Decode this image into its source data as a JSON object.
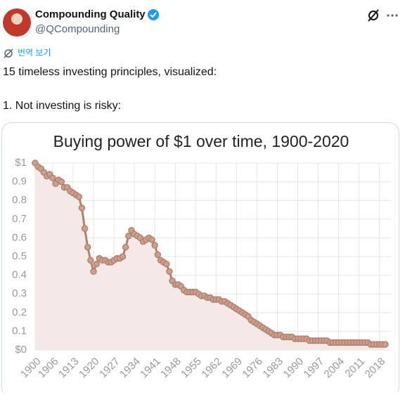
{
  "tweet": {
    "name": "Compounding Quality",
    "handle": "@QCompounding",
    "translate": "번역 보기",
    "lines": [
      "15 timeless investing principles, visualized:",
      "1.  Not investing is risky:"
    ]
  },
  "chart_data": {
    "type": "line",
    "title": "Buying power of $1 over time, 1900-2020",
    "x": [
      1900,
      1901,
      1902,
      1903,
      1904,
      1905,
      1906,
      1907,
      1908,
      1909,
      1910,
      1911,
      1912,
      1913,
      1914,
      1915,
      1916,
      1917,
      1918,
      1919,
      1920,
      1921,
      1922,
      1923,
      1924,
      1925,
      1926,
      1927,
      1928,
      1929,
      1930,
      1931,
      1932,
      1933,
      1934,
      1935,
      1936,
      1937,
      1938,
      1939,
      1940,
      1941,
      1942,
      1943,
      1944,
      1945,
      1946,
      1947,
      1948,
      1949,
      1950,
      1951,
      1952,
      1953,
      1954,
      1955,
      1956,
      1957,
      1958,
      1959,
      1960,
      1961,
      1962,
      1963,
      1964,
      1965,
      1966,
      1967,
      1968,
      1969,
      1970,
      1971,
      1972,
      1973,
      1974,
      1975,
      1976,
      1977,
      1978,
      1979,
      1980,
      1981,
      1982,
      1983,
      1984,
      1985,
      1986,
      1987,
      1988,
      1989,
      1990,
      1991,
      1992,
      1993,
      1994,
      1995,
      1996,
      1997,
      1998,
      1999,
      2000,
      2001,
      2002,
      2003,
      2004,
      2005,
      2006,
      2007,
      2008,
      2009,
      2010,
      2011,
      2012,
      2013,
      2014,
      2015,
      2016,
      2017,
      2018,
      2019,
      2020
    ],
    "series": [
      {
        "name": "Buying power",
        "color": "#b5806c",
        "values": [
          1.0,
          0.98,
          0.97,
          0.95,
          0.93,
          0.94,
          0.92,
          0.89,
          0.91,
          0.9,
          0.87,
          0.87,
          0.85,
          0.84,
          0.83,
          0.82,
          0.76,
          0.65,
          0.55,
          0.48,
          0.42,
          0.46,
          0.49,
          0.48,
          0.48,
          0.47,
          0.47,
          0.48,
          0.49,
          0.49,
          0.5,
          0.55,
          0.61,
          0.64,
          0.62,
          0.61,
          0.6,
          0.58,
          0.59,
          0.6,
          0.59,
          0.56,
          0.51,
          0.48,
          0.47,
          0.46,
          0.42,
          0.37,
          0.35,
          0.35,
          0.34,
          0.32,
          0.31,
          0.31,
          0.31,
          0.31,
          0.3,
          0.29,
          0.29,
          0.28,
          0.28,
          0.27,
          0.27,
          0.27,
          0.26,
          0.26,
          0.25,
          0.24,
          0.23,
          0.22,
          0.21,
          0.2,
          0.19,
          0.18,
          0.16,
          0.15,
          0.14,
          0.13,
          0.12,
          0.11,
          0.1,
          0.09,
          0.08,
          0.08,
          0.08,
          0.07,
          0.07,
          0.07,
          0.07,
          0.06,
          0.06,
          0.06,
          0.06,
          0.06,
          0.05,
          0.05,
          0.05,
          0.05,
          0.05,
          0.05,
          0.05,
          0.04,
          0.04,
          0.04,
          0.04,
          0.04,
          0.04,
          0.04,
          0.04,
          0.04,
          0.04,
          0.04,
          0.04,
          0.04,
          0.04,
          0.03,
          0.03,
          0.03,
          0.03,
          0.03,
          0.03
        ]
      }
    ],
    "xlim": [
      1900,
      2020
    ],
    "xticks": [
      1900,
      1906,
      1913,
      1920,
      1927,
      1934,
      1941,
      1948,
      1955,
      1962,
      1969,
      1976,
      1983,
      1990,
      1997,
      2004,
      2011,
      2018
    ],
    "ylim": [
      0,
      1
    ],
    "yticks": [
      {
        "value": 0,
        "label": "$0"
      },
      0.1,
      0.2,
      0.3,
      0.4,
      0.5,
      0.6,
      0.7,
      0.8,
      0.9,
      {
        "value": 1,
        "label": "$1"
      }
    ],
    "grid": true,
    "fill": "#f4e9e7"
  }
}
